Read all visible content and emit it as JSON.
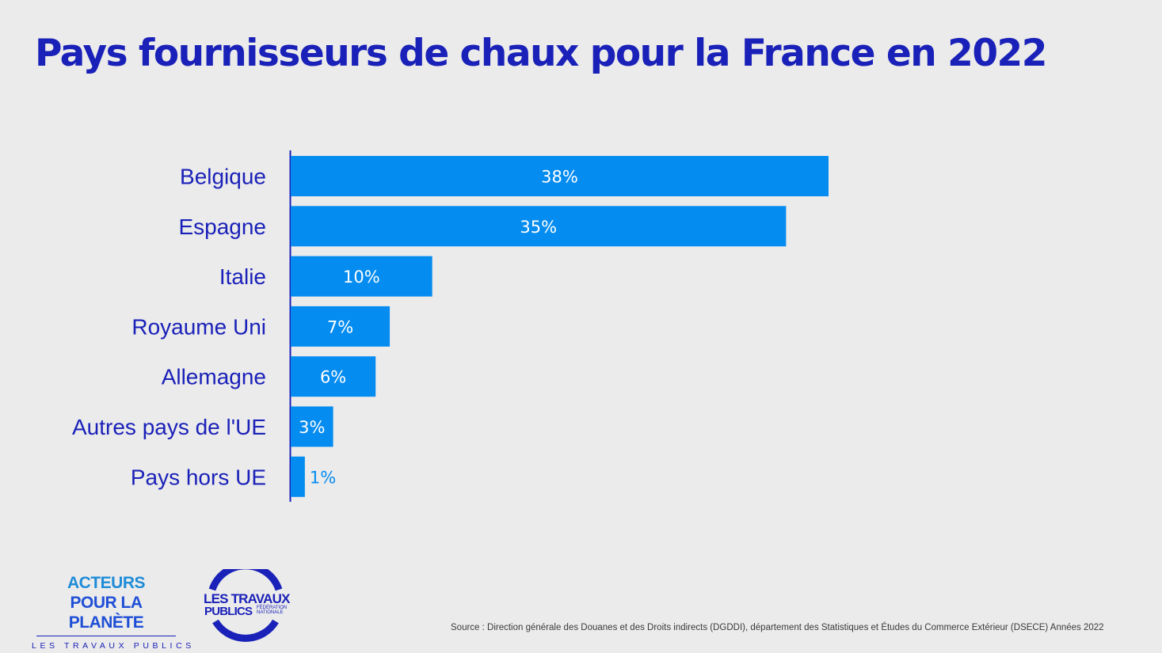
{
  "title": "Pays fournisseurs de chaux pour la France en 2022",
  "chart_data": {
    "type": "bar",
    "orientation": "horizontal",
    "categories": [
      "Belgique",
      "Espagne",
      "Italie",
      "Royaume Uni",
      "Allemagne",
      "Autres pays de l'UE",
      "Pays hors UE"
    ],
    "values": [
      38,
      35,
      10,
      7,
      6,
      3,
      1
    ],
    "value_labels": [
      "38%",
      "35%",
      "10%",
      "7%",
      "6%",
      "3%",
      "1%"
    ],
    "unit": "%",
    "xlim": [
      0,
      38
    ],
    "grid": false,
    "legend": "none",
    "bar_color": "#058cf0",
    "label_color": "#1a21b8"
  },
  "footer": {
    "logo_acteurs": {
      "line1": "ACTEURS",
      "line2": "POUR LA PLANÈTE",
      "subline": "LES TRAVAUX PUBLICS"
    },
    "logo_tp": {
      "line1": "LES TRAVAUX",
      "line2": "PUBLICS",
      "line3": "FÉDÉRATION NATIONALE"
    },
    "source": "Source : Direction générale des Douanes et des Droits indirects (DGDDI), département des Statistiques et Études du Commerce Extérieur (DSECE) Années 2022"
  },
  "colors": {
    "title": "#1a21b8",
    "bar": "#058cf0",
    "background": "#ebebeb"
  }
}
